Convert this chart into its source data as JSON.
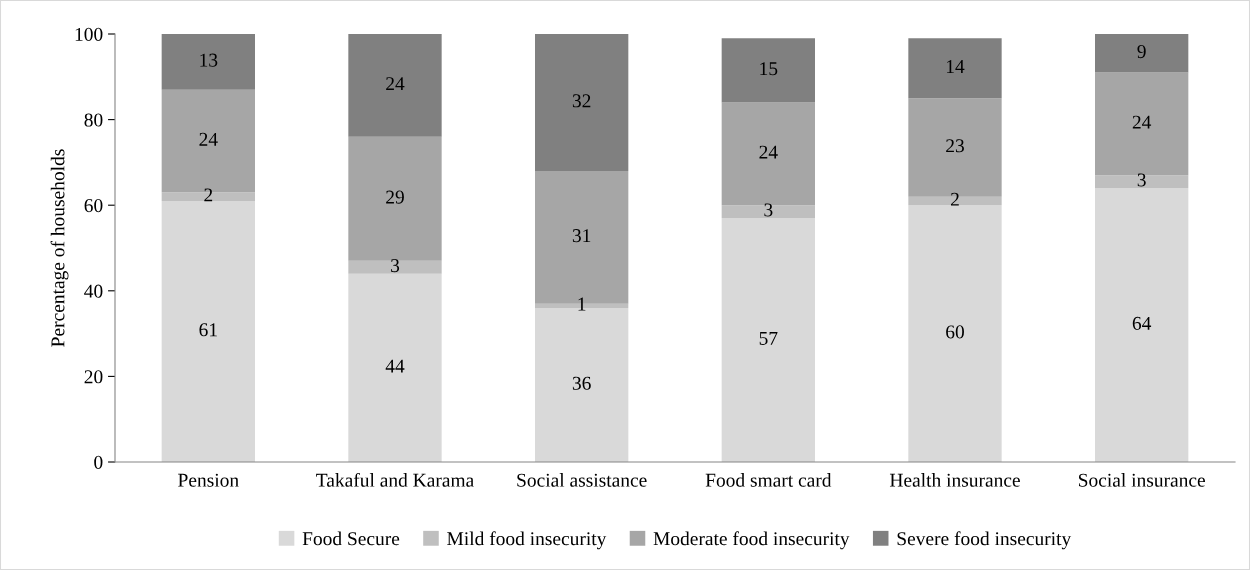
{
  "chart_data": {
    "type": "bar",
    "stacked": true,
    "ylabel": "Percentage of households",
    "categories": [
      "Pension",
      "Takaful and Karama",
      "Social assistance",
      "Food smart card",
      "Health insurance",
      "Social insurance"
    ],
    "series": [
      {
        "name": "Food Secure",
        "color": "#d9d9d9",
        "values": [
          61,
          44,
          36,
          57,
          60,
          64
        ]
      },
      {
        "name": "Mild food insecurity",
        "color": "#bfbfbf",
        "values": [
          2,
          3,
          1,
          3,
          2,
          3
        ]
      },
      {
        "name": "Moderate food insecurity",
        "color": "#a6a6a6",
        "values": [
          24,
          29,
          31,
          24,
          23,
          24
        ]
      },
      {
        "name": "Severe food insecurity",
        "color": "#808080",
        "values": [
          13,
          24,
          32,
          15,
          14,
          9
        ]
      }
    ],
    "ylim": [
      0,
      100
    ],
    "yticks": [
      0,
      20,
      40,
      60,
      80,
      100
    ],
    "data_labels": true,
    "legend": "bottom",
    "grid": false
  }
}
